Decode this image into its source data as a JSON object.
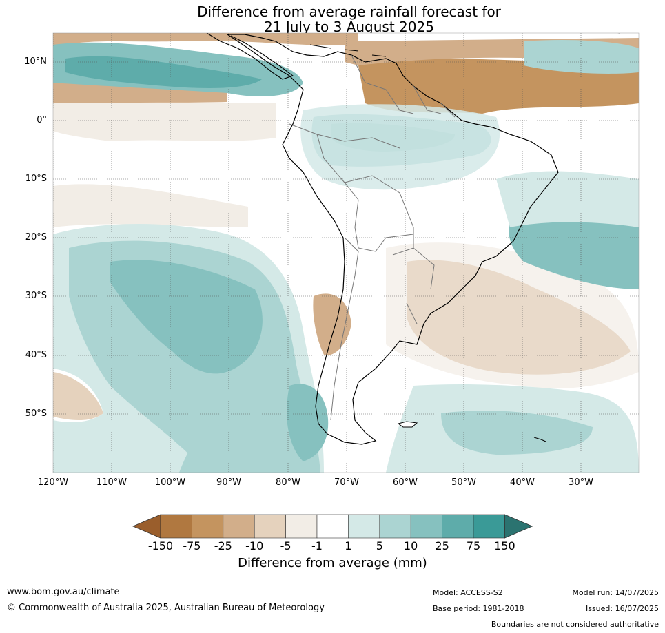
{
  "title": {
    "line1": "Difference from average rainfall forecast for",
    "line2": "21 July to 3 August 2025"
  },
  "map": {
    "lat_labels": [
      "10°N",
      "0°",
      "10°S",
      "20°S",
      "30°S",
      "40°S",
      "50°S"
    ],
    "lon_labels": [
      "120°W",
      "110°W",
      "100°W",
      "90°W",
      "80°W",
      "70°W",
      "60°W",
      "50°W",
      "40°W",
      "30°W"
    ]
  },
  "colorbar": {
    "ticks": [
      "-150",
      "-75",
      "-25",
      "-10",
      "-5",
      "-1",
      "1",
      "5",
      "10",
      "25",
      "75",
      "150"
    ],
    "label": "Difference from average (mm)",
    "colors": [
      "#9a5e2c",
      "#b07840",
      "#c4945f",
      "#d2ae8a",
      "#e5d2bd",
      "#f2ede6",
      "#ffffff",
      "#d4e9e7",
      "#abd4d2",
      "#86c1bf",
      "#5eacaa",
      "#3a9a97",
      "#2b7370"
    ]
  },
  "footer": {
    "url": "www.bom.gov.au/climate",
    "copyright": "© Commonwealth of Australia 2025, Australian Bureau of Meteorology",
    "model": "Model: ACCESS-S2",
    "base_period": "Base period: 1981-2018",
    "model_run": "Model run: 14/07/2025",
    "issued": "Issued: 16/07/2025",
    "disclaimer": "Boundaries are not considered authoritative"
  }
}
